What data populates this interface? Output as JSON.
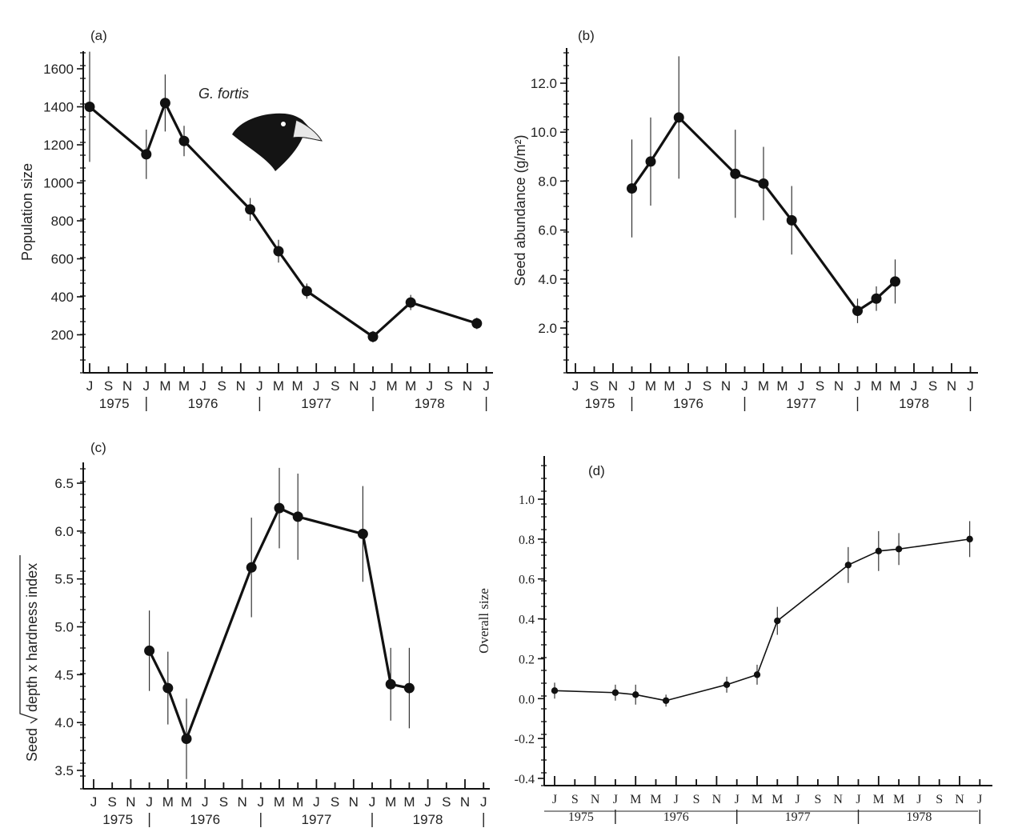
{
  "chart_data": [
    {
      "type": "line",
      "panel_label": "(a)",
      "ylabel": "Population size",
      "annotation": "G. fortis",
      "annotation_icon": "finch-head-icon",
      "xlabel": "",
      "month_ticks": [
        "J",
        "S",
        "N",
        "J",
        "M",
        "M",
        "J",
        "S",
        "N",
        "J",
        "M",
        "M",
        "J",
        "S",
        "N",
        "J",
        "M",
        "M",
        "J",
        "S",
        "N",
        "J"
      ],
      "year_labels": [
        "1975",
        "1976",
        "1977",
        "1978"
      ],
      "ylim": [
        0,
        1700
      ],
      "yticks": [
        200,
        400,
        600,
        800,
        1000,
        1200,
        1400,
        1600
      ],
      "series": [
        {
          "x": [
            "1975-07",
            "1976-01",
            "1976-03",
            "1976-05",
            "1976-12",
            "1977-03",
            "1977-06",
            "1978-01",
            "1978-05",
            "1978-12"
          ],
          "values": [
            1400,
            1150,
            1420,
            1220,
            860,
            640,
            430,
            190,
            370,
            260
          ],
          "err": [
            290,
            130,
            150,
            80,
            60,
            60,
            40,
            30,
            40,
            30
          ]
        }
      ]
    },
    {
      "type": "line",
      "panel_label": "(b)",
      "ylabel": "Seed abundance (g/m²)",
      "xlabel": "",
      "month_ticks": [
        "J",
        "S",
        "N",
        "J",
        "M",
        "M",
        "J",
        "S",
        "N",
        "J",
        "M",
        "M",
        "J",
        "S",
        "N",
        "J",
        "M",
        "M",
        "J",
        "S",
        "N",
        "J"
      ],
      "year_labels": [
        "1975",
        "1976",
        "1977",
        "1978"
      ],
      "ylim": [
        0,
        13.5
      ],
      "yticks": [
        "2.0",
        "4.0",
        "6.0",
        "8.0",
        "10.0",
        "12.0"
      ],
      "series": [
        {
          "x": [
            "1976-01",
            "1976-03",
            "1976-06",
            "1976-12",
            "1977-03",
            "1977-06",
            "1978-01",
            "1978-03",
            "1978-05"
          ],
          "values": [
            7.7,
            8.8,
            10.6,
            8.3,
            7.9,
            6.4,
            2.7,
            3.2,
            3.9
          ],
          "err": [
            2.0,
            1.8,
            2.5,
            1.8,
            1.5,
            1.4,
            0.5,
            0.5,
            0.9
          ]
        }
      ]
    },
    {
      "type": "line",
      "panel_label": "(c)",
      "ylabel_prefix": "Seed ",
      "ylabel_radicand": "depth x hardness index",
      "xlabel": "",
      "month_ticks": [
        "J",
        "S",
        "N",
        "J",
        "M",
        "M",
        "J",
        "S",
        "N",
        "J",
        "M",
        "M",
        "J",
        "S",
        "N",
        "J",
        "M",
        "M",
        "J",
        "S",
        "N",
        "J"
      ],
      "year_labels": [
        "1975",
        "1976",
        "1977",
        "1978"
      ],
      "ylim": [
        3.3,
        6.7
      ],
      "yticks": [
        "3.5",
        "4.0",
        "4.5",
        "5.0",
        "5.5",
        "6.0",
        "6.5"
      ],
      "series": [
        {
          "x": [
            "1976-01",
            "1976-03",
            "1976-05",
            "1976-12",
            "1977-03",
            "1977-05",
            "1977-12",
            "1978-03",
            "1978-05"
          ],
          "values": [
            4.75,
            4.36,
            3.83,
            5.62,
            6.24,
            6.15,
            5.97,
            4.4,
            4.36
          ],
          "err": [
            0.42,
            0.38,
            0.42,
            0.52,
            0.42,
            0.45,
            0.5,
            0.38,
            0.42
          ]
        }
      ]
    },
    {
      "type": "line",
      "panel_label": "(d)",
      "ylabel": "Overall size",
      "xlabel": "",
      "month_ticks": [
        "J",
        "S",
        "N",
        "J",
        "M",
        "M",
        "J",
        "S",
        "N",
        "J",
        "M",
        "M",
        "J",
        "S",
        "N",
        "J",
        "M",
        "M",
        "J",
        "S",
        "N",
        "J"
      ],
      "year_labels": [
        "1975",
        "1976",
        "1977",
        "1978"
      ],
      "ylim": [
        -0.45,
        1.2
      ],
      "yticks": [
        "-0.4",
        "-0.2",
        "0.0",
        "0.2",
        "0.4",
        "0.6",
        "0.8",
        "1.0"
      ],
      "series": [
        {
          "x": [
            "1975-07",
            "1976-01",
            "1976-03",
            "1976-06",
            "1976-12",
            "1977-03",
            "1977-05",
            "1977-12",
            "1978-03",
            "1978-05",
            "1978-12"
          ],
          "values": [
            0.04,
            0.03,
            0.02,
            -0.01,
            0.07,
            0.12,
            0.39,
            0.67,
            0.74,
            0.75,
            0.8
          ],
          "err": [
            0.04,
            0.04,
            0.05,
            0.03,
            0.04,
            0.05,
            0.07,
            0.09,
            0.1,
            0.08,
            0.09
          ]
        }
      ]
    }
  ]
}
